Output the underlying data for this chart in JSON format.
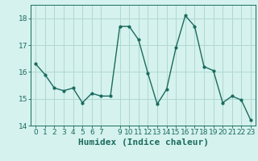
{
  "x": [
    0,
    1,
    2,
    3,
    4,
    5,
    6,
    7,
    8,
    9,
    10,
    11,
    12,
    13,
    14,
    15,
    16,
    17,
    18,
    19,
    20,
    21,
    22,
    23
  ],
  "y": [
    16.3,
    15.9,
    15.4,
    15.3,
    15.4,
    14.85,
    15.2,
    15.1,
    15.1,
    17.7,
    17.7,
    17.2,
    15.95,
    14.8,
    15.35,
    16.9,
    18.1,
    17.7,
    16.2,
    16.05,
    14.85,
    15.1,
    14.95,
    14.2
  ],
  "line_color": "#1a6b5e",
  "marker": "o",
  "marker_size": 2,
  "bg_color": "#d5f2ee",
  "grid_color": "#b0d8d0",
  "xlabel": "Humidex (Indice chaleur)",
  "ylim": [
    14,
    18.5
  ],
  "xlim": [
    -0.5,
    23.5
  ],
  "yticks": [
    14,
    15,
    16,
    17,
    18
  ],
  "xticks": [
    0,
    1,
    2,
    3,
    4,
    5,
    6,
    7,
    9,
    10,
    11,
    12,
    13,
    14,
    15,
    16,
    17,
    18,
    19,
    20,
    21,
    22,
    23
  ],
  "tick_labelsize": 6.5,
  "xlabel_fontsize": 8,
  "line_width": 1.0
}
